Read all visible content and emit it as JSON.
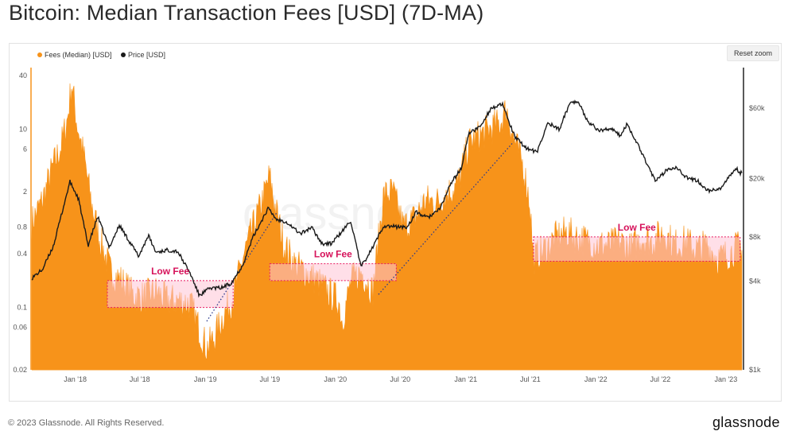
{
  "title": "Bitcoin: Median Transaction Fees [USD] (7D-MA)",
  "reset_zoom_label": "Reset zoom",
  "footer": {
    "copyright": "© 2023 Glassnode. All Rights Reserved.",
    "brand": "glassnode"
  },
  "watermark": "glassnode",
  "colors": {
    "fees": "#f7931a",
    "price": "#1a1a1a",
    "low_fee_text": "#d6125a",
    "low_fee_box_stroke": "#e8185f",
    "low_fee_box_fill": "#ffc4d6"
  },
  "chart_data": {
    "type": "area",
    "title": "Bitcoin: Median Transaction Fees [USD] (7D-MA)",
    "legend": {
      "placement": "top-left",
      "entries": [
        {
          "name": "Fees (Median) [USD]",
          "color": "#f7931a",
          "marker": "circle"
        },
        {
          "name": "Price [USD]",
          "color": "#1a1a1a",
          "marker": "circle"
        }
      ]
    },
    "x_axis": {
      "ticks": [
        "Jan '18",
        "Jul '18",
        "Jan '19",
        "Jul '19",
        "Jan '20",
        "Jul '20",
        "Jan '21",
        "Jul '21",
        "Jan '22",
        "Jul '22",
        "Jan '23"
      ],
      "range": [
        "2017-09-01",
        "2023-02-15"
      ]
    },
    "y_left": {
      "scale": "log",
      "ticks": [
        40,
        10,
        6,
        2,
        0.8,
        0.4,
        0.1,
        0.06,
        0.02
      ],
      "tick_labels": [
        "40",
        "10",
        "6",
        "2",
        "0.8",
        "0.4",
        "0.1",
        "0.06",
        "0.02"
      ],
      "range": [
        0.02,
        40
      ]
    },
    "y_right": {
      "scale": "log",
      "ticks": [
        60000,
        20000,
        8000,
        4000,
        1000
      ],
      "tick_labels": [
        "$60k",
        "$20k",
        "$8k",
        "$4k",
        "$1k"
      ],
      "range": [
        1000,
        100000
      ]
    },
    "grid": false,
    "series": [
      {
        "name": "Fees (Median) [USD]",
        "axis": "left",
        "render": "area",
        "points": [
          [
            "2017-09-01",
            0.9
          ],
          [
            "2017-10-01",
            1.6
          ],
          [
            "2017-11-01",
            4.0
          ],
          [
            "2017-11-20",
            6.0
          ],
          [
            "2017-12-10",
            13.0
          ],
          [
            "2017-12-22",
            33.0
          ],
          [
            "2018-01-05",
            12.0
          ],
          [
            "2018-01-25",
            5.0
          ],
          [
            "2018-02-15",
            1.5
          ],
          [
            "2018-03-10",
            0.6
          ],
          [
            "2018-04-10",
            0.25
          ],
          [
            "2018-05-10",
            0.2
          ],
          [
            "2018-06-10",
            0.14
          ],
          [
            "2018-07-10",
            0.13
          ],
          [
            "2018-08-15",
            0.15
          ],
          [
            "2018-09-15",
            0.12
          ],
          [
            "2018-10-15",
            0.12
          ],
          [
            "2018-11-20",
            0.11
          ],
          [
            "2018-12-20",
            0.05
          ],
          [
            "2019-01-05",
            0.035
          ],
          [
            "2019-01-25",
            0.045
          ],
          [
            "2019-02-20",
            0.08
          ],
          [
            "2019-03-20",
            0.13
          ],
          [
            "2019-04-20",
            0.4
          ],
          [
            "2019-05-20",
            0.9
          ],
          [
            "2019-06-15",
            1.8
          ],
          [
            "2019-06-30",
            3.0
          ],
          [
            "2019-07-15",
            1.4
          ],
          [
            "2019-08-10",
            0.5
          ],
          [
            "2019-09-10",
            0.3
          ],
          [
            "2019-10-10",
            0.25
          ],
          [
            "2019-11-10",
            0.2
          ],
          [
            "2019-12-10",
            0.15
          ],
          [
            "2020-01-10",
            0.12
          ],
          [
            "2020-01-20",
            0.07
          ],
          [
            "2020-02-15",
            0.2
          ],
          [
            "2020-03-15",
            0.25
          ],
          [
            "2020-04-15",
            0.15
          ],
          [
            "2020-05-15",
            1.8
          ],
          [
            "2020-06-10",
            2.0
          ],
          [
            "2020-07-10",
            0.8
          ],
          [
            "2020-08-10",
            1.0
          ],
          [
            "2020-09-10",
            1.6
          ],
          [
            "2020-10-10",
            1.5
          ],
          [
            "2020-11-10",
            1.9
          ],
          [
            "2020-12-10",
            2.4
          ],
          [
            "2021-01-10",
            7.0
          ],
          [
            "2021-02-10",
            8.5
          ],
          [
            "2021-03-10",
            10.0
          ],
          [
            "2021-04-10",
            12.0
          ],
          [
            "2021-04-25",
            17.0
          ],
          [
            "2021-05-15",
            8.0
          ],
          [
            "2021-06-10",
            4.0
          ],
          [
            "2021-06-30",
            1.5
          ],
          [
            "2021-07-10",
            0.35
          ],
          [
            "2021-08-10",
            0.45
          ],
          [
            "2021-09-10",
            0.6
          ],
          [
            "2021-10-10",
            0.7
          ],
          [
            "2021-11-10",
            0.6
          ],
          [
            "2021-12-10",
            0.55
          ],
          [
            "2022-01-10",
            0.5
          ],
          [
            "2022-02-10",
            0.5
          ],
          [
            "2022-03-10",
            0.55
          ],
          [
            "2022-04-10",
            0.45
          ],
          [
            "2022-05-10",
            0.6
          ],
          [
            "2022-06-10",
            0.55
          ],
          [
            "2022-07-10",
            0.7
          ],
          [
            "2022-08-10",
            0.5
          ],
          [
            "2022-09-10",
            0.55
          ],
          [
            "2022-10-10",
            0.45
          ],
          [
            "2022-11-10",
            0.5
          ],
          [
            "2022-12-10",
            0.35
          ],
          [
            "2023-01-10",
            0.4
          ],
          [
            "2023-02-10",
            0.5
          ]
        ]
      },
      {
        "name": "Price [USD]",
        "axis": "right",
        "render": "line",
        "points": [
          [
            "2017-09-01",
            4200
          ],
          [
            "2017-10-01",
            4800
          ],
          [
            "2017-11-01",
            7000
          ],
          [
            "2017-12-17",
            19000
          ],
          [
            "2018-01-10",
            14500
          ],
          [
            "2018-02-06",
            7000
          ],
          [
            "2018-03-05",
            11000
          ],
          [
            "2018-04-06",
            6800
          ],
          [
            "2018-05-05",
            9600
          ],
          [
            "2018-06-28",
            5900
          ],
          [
            "2018-07-25",
            8200
          ],
          [
            "2018-08-15",
            6300
          ],
          [
            "2018-09-15",
            6500
          ],
          [
            "2018-10-15",
            6400
          ],
          [
            "2018-11-20",
            4500
          ],
          [
            "2018-12-15",
            3200
          ],
          [
            "2019-01-15",
            3600
          ],
          [
            "2019-02-15",
            3600
          ],
          [
            "2019-03-15",
            3900
          ],
          [
            "2019-04-15",
            5100
          ],
          [
            "2019-05-15",
            8000
          ],
          [
            "2019-06-26",
            12500
          ],
          [
            "2019-07-20",
            10500
          ],
          [
            "2019-08-15",
            10200
          ],
          [
            "2019-09-25",
            8400
          ],
          [
            "2019-10-26",
            9300
          ],
          [
            "2019-11-25",
            7200
          ],
          [
            "2019-12-20",
            7200
          ],
          [
            "2020-01-20",
            8700
          ],
          [
            "2020-02-13",
            10300
          ],
          [
            "2020-03-13",
            5000
          ],
          [
            "2020-04-15",
            6800
          ],
          [
            "2020-05-15",
            9500
          ],
          [
            "2020-06-15",
            9400
          ],
          [
            "2020-07-20",
            9300
          ],
          [
            "2020-08-15",
            11800
          ],
          [
            "2020-09-15",
            10800
          ],
          [
            "2020-10-20",
            12300
          ],
          [
            "2020-11-20",
            18500
          ],
          [
            "2020-12-20",
            23500
          ],
          [
            "2021-01-08",
            40000
          ],
          [
            "2021-02-10",
            45000
          ],
          [
            "2021-03-13",
            60000
          ],
          [
            "2021-04-14",
            63500
          ],
          [
            "2021-05-19",
            38000
          ],
          [
            "2021-06-22",
            32000
          ],
          [
            "2021-07-20",
            30000
          ],
          [
            "2021-08-20",
            48000
          ],
          [
            "2021-09-20",
            43000
          ],
          [
            "2021-10-20",
            65000
          ],
          [
            "2021-11-10",
            67500
          ],
          [
            "2021-12-10",
            49000
          ],
          [
            "2022-01-10",
            42000
          ],
          [
            "2022-02-10",
            44000
          ],
          [
            "2022-03-10",
            39000
          ],
          [
            "2022-03-30",
            47000
          ],
          [
            "2022-05-10",
            30000
          ],
          [
            "2022-06-18",
            19000
          ],
          [
            "2022-07-20",
            23000
          ],
          [
            "2022-08-15",
            24000
          ],
          [
            "2022-09-15",
            20000
          ],
          [
            "2022-10-15",
            19200
          ],
          [
            "2022-11-10",
            16500
          ],
          [
            "2022-12-15",
            16800
          ],
          [
            "2023-01-15",
            21000
          ],
          [
            "2023-01-30",
            23500
          ],
          [
            "2023-02-10",
            21800
          ]
        ]
      }
    ],
    "annotations": [
      {
        "text": "Low Fee",
        "box": {
          "x0": "2018-04-01",
          "x1": "2019-03-20",
          "y0": 0.1,
          "y1": 0.2
        }
      },
      {
        "text": "Low Fee",
        "box": {
          "x0": "2019-07-01",
          "x1": "2020-06-20",
          "y0": 0.2,
          "y1": 0.31
        }
      },
      {
        "text": "Low Fee",
        "box": {
          "x0": "2021-07-10",
          "x1": "2023-02-10",
          "y0": 0.33,
          "y1": 0.62
        }
      }
    ],
    "trendlines": [
      {
        "style": "dotted",
        "from": [
          "2019-01-05",
          0.07
        ],
        "to": [
          "2019-07-20",
          1.15
        ]
      },
      {
        "style": "dotted",
        "from": [
          "2020-05-01",
          0.14
        ],
        "to": [
          "2021-05-15",
          7.2
        ]
      }
    ]
  }
}
